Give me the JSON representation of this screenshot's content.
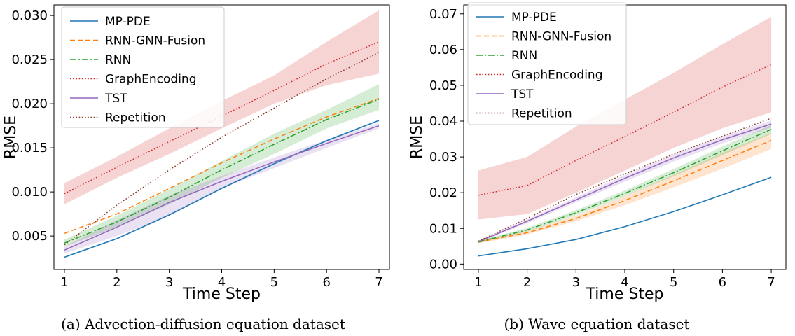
{
  "chart_data": [
    {
      "type": "line",
      "caption": "(a) Advection-diffusion equation dataset",
      "xlabel": "Time Step",
      "ylabel": "RMSE",
      "x": [
        1,
        2,
        3,
        4,
        5,
        6,
        7
      ],
      "xlim": [
        0.8,
        7.2
      ],
      "ylim": [
        0.0012,
        0.0312
      ],
      "yticks": [
        "0.005",
        "0.010",
        "0.015",
        "0.020",
        "0.025",
        "0.030"
      ],
      "ytick_values": [
        0.005,
        0.01,
        0.015,
        0.02,
        0.025,
        0.03
      ],
      "xticks": [
        "1",
        "2",
        "3",
        "4",
        "5",
        "6",
        "7"
      ],
      "legend_position": "upper-left",
      "series": [
        {
          "name": "MP-PDE",
          "color": "#1f77b4",
          "style": "solid",
          "values": [
            0.0026,
            0.0047,
            0.0074,
            0.0104,
            0.0132,
            0.0158,
            0.0181
          ],
          "lower": [
            0.0025,
            0.0046,
            0.0073,
            0.0103,
            0.0131,
            0.0157,
            0.018
          ],
          "upper": [
            0.0027,
            0.0048,
            0.0075,
            0.0105,
            0.0133,
            0.0159,
            0.0182
          ]
        },
        {
          "name": "RNN-GNN-Fusion",
          "color": "#ff7f0e",
          "style": "dashed",
          "values": [
            0.0053,
            0.0075,
            0.0104,
            0.0133,
            0.016,
            0.0185,
            0.0206
          ]
        },
        {
          "name": "RNN",
          "color": "#2ca02c",
          "style": "dashdot",
          "values": [
            0.0042,
            0.0066,
            0.0094,
            0.0125,
            0.0154,
            0.0182,
            0.0205
          ],
          "lower": [
            0.0038,
            0.006,
            0.0086,
            0.0116,
            0.0143,
            0.0172,
            0.0193
          ],
          "upper": [
            0.0046,
            0.0073,
            0.0103,
            0.0135,
            0.0166,
            0.0193,
            0.0222
          ]
        },
        {
          "name": "GraphEncoding",
          "color": "#d62728",
          "style": "dotted",
          "values": [
            0.0098,
            0.0128,
            0.0157,
            0.0186,
            0.0215,
            0.0245,
            0.027
          ],
          "lower": [
            0.0086,
            0.0116,
            0.0143,
            0.0172,
            0.02,
            0.0221,
            0.0234
          ],
          "upper": [
            0.011,
            0.014,
            0.0172,
            0.0203,
            0.0232,
            0.027,
            0.0306
          ]
        },
        {
          "name": "TST",
          "color": "#9467bd",
          "style": "solid",
          "values": [
            0.0034,
            0.006,
            0.0088,
            0.0112,
            0.0134,
            0.0155,
            0.0175
          ],
          "lower": [
            0.003,
            0.005,
            0.0073,
            0.0104,
            0.0127,
            0.015,
            0.0172
          ],
          "upper": [
            0.0038,
            0.0068,
            0.0096,
            0.0118,
            0.0139,
            0.0159,
            0.0178
          ]
        },
        {
          "name": "Repetition",
          "color": "#8c3a2a",
          "style": "dotted",
          "values": [
            0.004,
            0.0085,
            0.0125,
            0.0162,
            0.0195,
            0.0228,
            0.0258
          ]
        }
      ]
    },
    {
      "type": "line",
      "caption": "(b) Wave equation dataset",
      "xlabel": "Time Step",
      "ylabel": "RMSE",
      "x": [
        1,
        2,
        3,
        4,
        5,
        6,
        7
      ],
      "xlim": [
        0.7,
        7.3
      ],
      "ylim": [
        -0.0015,
        0.0725
      ],
      "yticks": [
        "0.00",
        "0.01",
        "0.02",
        "0.03",
        "0.04",
        "0.05",
        "0.06",
        "0.07"
      ],
      "ytick_values": [
        0,
        0.01,
        0.02,
        0.03,
        0.04,
        0.05,
        0.06,
        0.07
      ],
      "xticks": [
        "1",
        "2",
        "3",
        "4",
        "5",
        "6",
        "7"
      ],
      "legend_position": "upper-left",
      "series": [
        {
          "name": "MP-PDE",
          "color": "#1f77b4",
          "style": "solid",
          "values": [
            0.0023,
            0.0043,
            0.0069,
            0.0105,
            0.0147,
            0.0194,
            0.0243
          ],
          "lower": [
            0.0021,
            0.0041,
            0.0067,
            0.0103,
            0.0145,
            0.0192,
            0.0241
          ],
          "upper": [
            0.0025,
            0.0045,
            0.0071,
            0.0107,
            0.0149,
            0.0196,
            0.0245
          ]
        },
        {
          "name": "RNN-GNN-Fusion",
          "color": "#ff7f0e",
          "style": "dashed",
          "values": [
            0.0062,
            0.0088,
            0.0128,
            0.0178,
            0.0233,
            0.029,
            0.0346
          ],
          "lower": [
            0.0058,
            0.0083,
            0.012,
            0.0165,
            0.0215,
            0.0267,
            0.0322
          ],
          "upper": [
            0.0066,
            0.0093,
            0.0136,
            0.019,
            0.025,
            0.0312,
            0.0368
          ]
        },
        {
          "name": "RNN",
          "color": "#2ca02c",
          "style": "dashdot",
          "values": [
            0.0062,
            0.0096,
            0.0144,
            0.0198,
            0.0256,
            0.0317,
            0.0377
          ],
          "lower": [
            0.0059,
            0.0091,
            0.0137,
            0.019,
            0.0246,
            0.0305,
            0.0364
          ],
          "upper": [
            0.0065,
            0.0101,
            0.0151,
            0.0206,
            0.0266,
            0.0329,
            0.039
          ]
        },
        {
          "name": "GraphEncoding",
          "color": "#d62728",
          "style": "dotted",
          "values": [
            0.0193,
            0.022,
            0.029,
            0.0357,
            0.0425,
            0.0495,
            0.0558
          ],
          "lower": [
            0.0125,
            0.014,
            0.02,
            0.0262,
            0.0325,
            0.038,
            0.0425
          ],
          "upper": [
            0.0262,
            0.03,
            0.0385,
            0.046,
            0.0535,
            0.0615,
            0.0692
          ]
        },
        {
          "name": "TST",
          "color": "#9467bd",
          "style": "solid",
          "values": [
            0.0063,
            0.012,
            0.018,
            0.024,
            0.0297,
            0.0348,
            0.0392
          ],
          "lower": [
            0.006,
            0.0115,
            0.0173,
            0.0231,
            0.0287,
            0.0338,
            0.0382
          ],
          "upper": [
            0.0066,
            0.0125,
            0.0187,
            0.0249,
            0.0307,
            0.0358,
            0.0402
          ]
        },
        {
          "name": "Repetition",
          "color": "#8c3a2a",
          "style": "dotted",
          "values": [
            0.0064,
            0.0128,
            0.0195,
            0.0252,
            0.0308,
            0.0358,
            0.0408
          ]
        }
      ]
    }
  ]
}
